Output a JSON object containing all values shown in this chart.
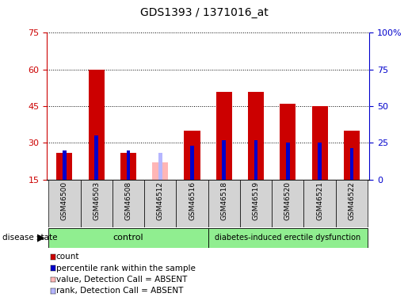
{
  "title": "GDS1393 / 1371016_at",
  "samples": [
    "GSM46500",
    "GSM46503",
    "GSM46508",
    "GSM46512",
    "GSM46516",
    "GSM46518",
    "GSM46519",
    "GSM46520",
    "GSM46521",
    "GSM46522"
  ],
  "red_values": [
    26,
    60,
    26,
    null,
    35,
    51,
    51,
    46,
    45,
    35
  ],
  "blue_values": [
    27,
    33,
    27,
    null,
    29,
    31,
    31,
    30,
    30,
    28
  ],
  "absent_red": [
    null,
    null,
    null,
    22,
    null,
    null,
    null,
    null,
    null,
    null
  ],
  "absent_blue": [
    null,
    null,
    null,
    26,
    null,
    null,
    null,
    null,
    null,
    null
  ],
  "control_indices": [
    0,
    1,
    2,
    3,
    4
  ],
  "diabetes_indices": [
    5,
    6,
    7,
    8,
    9
  ],
  "group_labels": [
    "control",
    "diabetes-induced erectile dysfunction"
  ],
  "group_color": "#90ee90",
  "ylim_left": [
    15,
    75
  ],
  "ylim_right": [
    0,
    100
  ],
  "yticks_left": [
    15,
    30,
    45,
    60,
    75
  ],
  "ytick_labels_left": [
    "15",
    "30",
    "45",
    "60",
    "75"
  ],
  "yticks_right": [
    0,
    25,
    50,
    75,
    100
  ],
  "ytick_labels_right": [
    "0",
    "25",
    "50",
    "75",
    "100%"
  ],
  "red_color": "#cc0000",
  "blue_color": "#0000cc",
  "absent_red_color": "#ffb6b6",
  "absent_blue_color": "#b6b6ff",
  "left_tick_color": "#cc0000",
  "right_tick_color": "#0000cc",
  "label_bg_color": "#d3d3d3",
  "disease_state_label": "disease state",
  "legend_items": [
    {
      "label": "count",
      "color": "#cc0000"
    },
    {
      "label": "percentile rank within the sample",
      "color": "#0000cc"
    },
    {
      "label": "value, Detection Call = ABSENT",
      "color": "#ffb6b6"
    },
    {
      "label": "rank, Detection Call = ABSENT",
      "color": "#b6b6ff"
    }
  ],
  "bar_width": 0.5,
  "blue_bar_width": 0.12
}
